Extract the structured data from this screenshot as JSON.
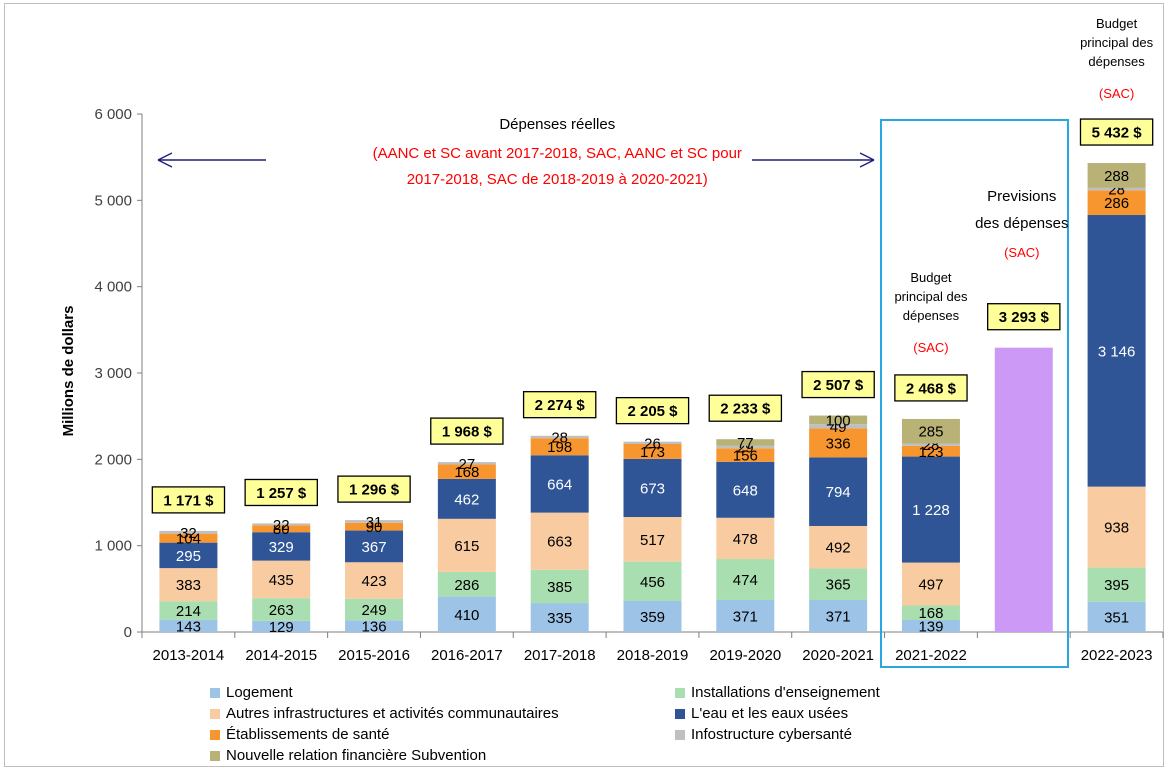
{
  "chart_data": {
    "type": "bar",
    "stacked": true,
    "ylabel": "Millions de dollars",
    "ylim": [
      0,
      6000
    ],
    "yticks": [
      0,
      1000,
      2000,
      3000,
      4000,
      5000,
      6000
    ],
    "ytick_labels": [
      "0",
      "1 000",
      "2 000",
      "3 000",
      "4 000",
      "5 000",
      "6 000"
    ],
    "categories": [
      "2013-2014",
      "2014-2015",
      "2015-2016",
      "2016-2017",
      "2017-2018",
      "2018-2019",
      "2019-2020",
      "2020-2021",
      "2021-2022",
      "",
      "2022-2023"
    ],
    "series": [
      {
        "name": "Logement",
        "color": "#9dc3e6",
        "values": [
          143,
          129,
          136,
          410,
          335,
          359,
          371,
          371,
          139,
          null,
          351
        ],
        "labels": [
          "143",
          "129",
          "136",
          "410",
          "335",
          "359",
          "371",
          "371",
          "139",
          "",
          "351"
        ]
      },
      {
        "name": "Installations d'enseignement",
        "color": "#a9dfb0",
        "values": [
          214,
          263,
          249,
          286,
          385,
          456,
          474,
          365,
          168,
          null,
          395
        ],
        "labels": [
          "214",
          "263",
          "249",
          "286",
          "385",
          "456",
          "474",
          "365",
          "168",
          "",
          "395"
        ]
      },
      {
        "name": "Autres infrastructures et activités communautaires",
        "color": "#f8cba0",
        "values": [
          383,
          435,
          423,
          615,
          663,
          517,
          478,
          492,
          497,
          null,
          938
        ],
        "labels": [
          "383",
          "435",
          "423",
          "615",
          "663",
          "517",
          "478",
          "492",
          "497",
          "",
          "938"
        ]
      },
      {
        "name": "L'eau et les eaux usées",
        "color": "#2f5597",
        "values": [
          295,
          329,
          367,
          462,
          664,
          673,
          648,
          794,
          1228,
          null,
          3146
        ],
        "labels": [
          "295",
          "329",
          "367",
          "462",
          "664",
          "673",
          "648",
          "794",
          "1 228",
          "",
          "3 146"
        ]
      },
      {
        "name": "Établissements de santé",
        "color": "#f7962f",
        "values": [
          104,
          80,
          90,
          168,
          198,
          173,
          156,
          336,
          123,
          null,
          286
        ],
        "labels": [
          "104",
          "80",
          "90",
          "168",
          "198",
          "173",
          "156",
          "336",
          "123",
          "",
          "286"
        ]
      },
      {
        "name": "Infostructure cybersanté",
        "color": "#bfbfbf",
        "values": [
          32,
          22,
          31,
          27,
          28,
          26,
          29,
          49,
          28,
          null,
          28
        ],
        "labels": [
          "32",
          "22",
          "31",
          "27",
          "28",
          "26",
          "29",
          "49",
          "28",
          "",
          "28"
        ]
      },
      {
        "name": "Nouvelle relation financière Subvention",
        "color": "#b8b277",
        "values": [
          null,
          null,
          null,
          null,
          null,
          null,
          77,
          100,
          285,
          null,
          288
        ],
        "labels": [
          "",
          "",
          "",
          "",
          "",
          "",
          "77",
          "100",
          "285",
          "",
          "288"
        ]
      },
      {
        "name": "",
        "color": "#cc99f7",
        "values": [
          null,
          null,
          null,
          null,
          null,
          null,
          null,
          null,
          null,
          3293,
          null
        ],
        "labels": [
          "",
          "",
          "",
          "",
          "",
          "",
          "",
          "",
          "",
          "",
          ""
        ]
      }
    ],
    "totals": [
      1171,
      1257,
      1296,
      1968,
      2274,
      2205,
      2233,
      2507,
      2468,
      3293,
      5432
    ],
    "total_labels": [
      "1 171 $",
      "1 257 $",
      "1 296 $",
      "1 968 $",
      "2 274 $",
      "2 205 $",
      "2 233 $",
      "2 507 $",
      "2 468 $",
      "3 293 $",
      "5 432 $"
    ],
    "legend_order": [
      0,
      1,
      2,
      3,
      4,
      5,
      6
    ],
    "legend_placement": "bottom",
    "grid": false,
    "annotations": {
      "actual_title": "Dépenses réelles",
      "actual_lines": [
        "(AANC et SC avant 2017-2018, SAC, AANC et SC pour",
        "2017-2018, SAC de 2018-2019 à 2020-2021)"
      ],
      "budget_2122_lines": [
        "Budget",
        "principal des",
        "dépenses"
      ],
      "budget_2122_sac": "(SAC)",
      "forecast_lines": [
        "Previsions",
        "des dépenses"
      ],
      "forecast_sac": "(SAC)",
      "budget_2223_lines": [
        "Budget",
        "principal des",
        "dépenses"
      ],
      "budget_2223_sac": "(SAC)"
    },
    "colors": {
      "total_box_fill": "#ffff99",
      "annotation_red": "#ff0000",
      "arrow": "#1f1f7a",
      "highlight_box": "#29a8e0"
    }
  }
}
